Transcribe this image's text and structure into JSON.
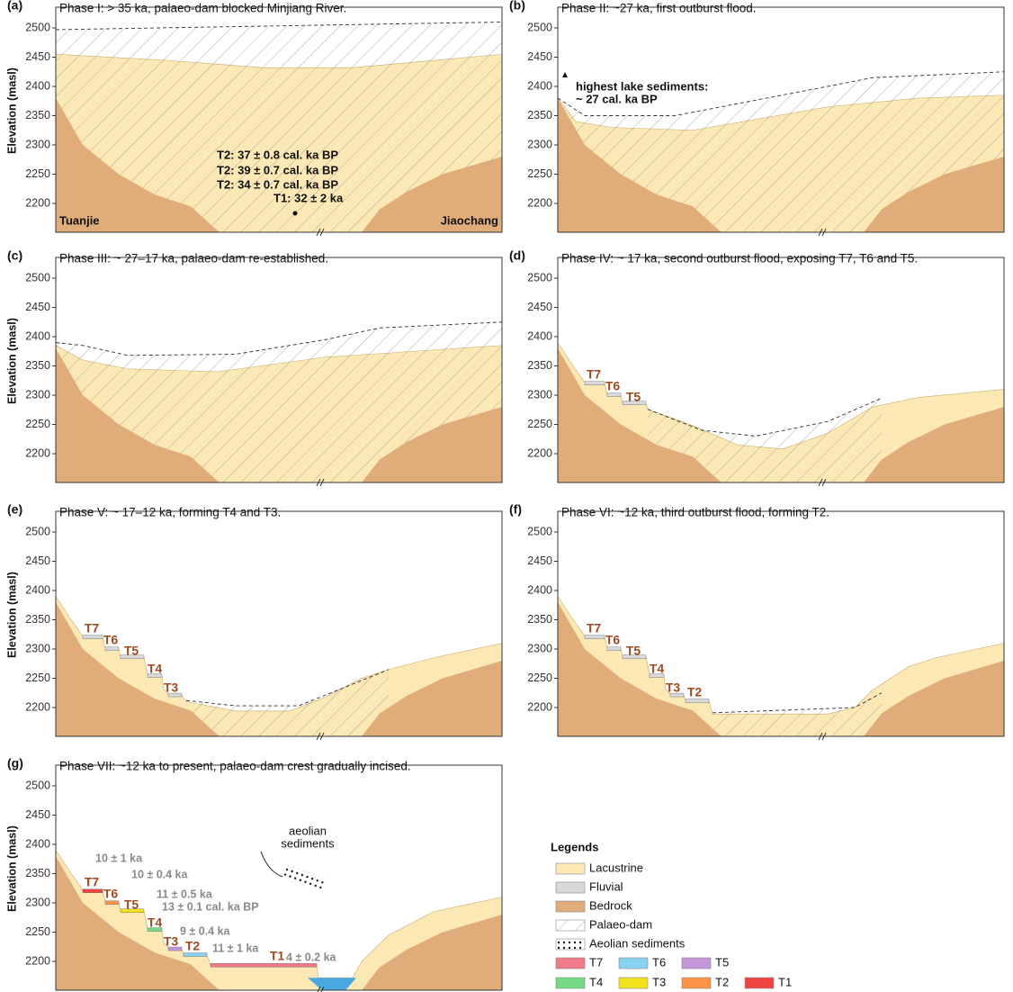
{
  "y_axis_label": "Elevation (masl)",
  "yticks": [
    2200,
    2250,
    2300,
    2350,
    2400,
    2450,
    2500
  ],
  "panels": [
    {
      "letter": "(a)",
      "title": "Phase I: > 35 ka, palaeo-dam blocked Minjiang River.",
      "labels": [
        "Tuanjie",
        "Jiaochang",
        "T2: 37 ± 0.8 cal. ka BP",
        "T2: 39 ± 0.7 cal. ka BP",
        "T2: 34 ± 0.7 cal. ka BP",
        "T1: 32 ± 2 ka"
      ]
    },
    {
      "letter": "(b)",
      "title": "Phase II: ~27 ka, first outburst flood.",
      "labels": [
        "highest lake sediments:",
        "~ 27 cal. ka BP"
      ]
    },
    {
      "letter": "(c)",
      "title": "Phase III: ~ 27–17 ka, palaeo-dam re-established."
    },
    {
      "letter": "(d)",
      "title": "Phase IV: ~ 17 ka, second outburst flood, exposing T7, T6 and T5.",
      "labels": [
        "T7",
        "T6",
        "T5"
      ]
    },
    {
      "letter": "(e)",
      "title": "Phase V: ~ 17–12 ka, forming T4 and T3.",
      "labels": [
        "T7",
        "T6",
        "T5",
        "T4",
        "T3"
      ]
    },
    {
      "letter": "(f)",
      "title": "Phase VI: ~12 ka, third outburst flood, forming T2.",
      "labels": [
        "T7",
        "T6",
        "T5",
        "T4",
        "T3",
        "T2"
      ]
    },
    {
      "letter": "(g)",
      "title": "Phase VII: ~12 ka to present, palaeo-dam crest gradually incised.",
      "labels": [
        "T7",
        "T6",
        "T5",
        "T4",
        "T3",
        "T2",
        "T1",
        "10 ± 1 ka",
        "10 ± 0.4 ka",
        "11 ± 0.5 ka",
        "13 ± 0.1 cal. ka BP",
        "9 ± 0.4 ka",
        "11 ± 1 ka",
        "4 ± 0.2 ka",
        "aeolian",
        "sediments"
      ]
    }
  ],
  "legend": {
    "title": "Legends",
    "items": [
      {
        "name": "Lacustrine",
        "color": "#fbe8b4"
      },
      {
        "name": "Fluvial",
        "color": "#d9d9d9"
      },
      {
        "name": "Bedrock",
        "color": "#e0ac7a"
      },
      {
        "name": "Palaeo-dam",
        "pattern": "hatch"
      },
      {
        "name": "Aeolian sediments",
        "pattern": "dots"
      },
      {
        "name": "T7",
        "color": "#f07a88"
      },
      {
        "name": "T6",
        "color": "#86d2f0"
      },
      {
        "name": "T5",
        "color": "#c396d9"
      },
      {
        "name": "T4",
        "color": "#74d884"
      },
      {
        "name": "T3",
        "color": "#f2e21c"
      },
      {
        "name": "T2",
        "color": "#ff9446"
      },
      {
        "name": "T1",
        "color": "#f04444"
      }
    ]
  }
}
